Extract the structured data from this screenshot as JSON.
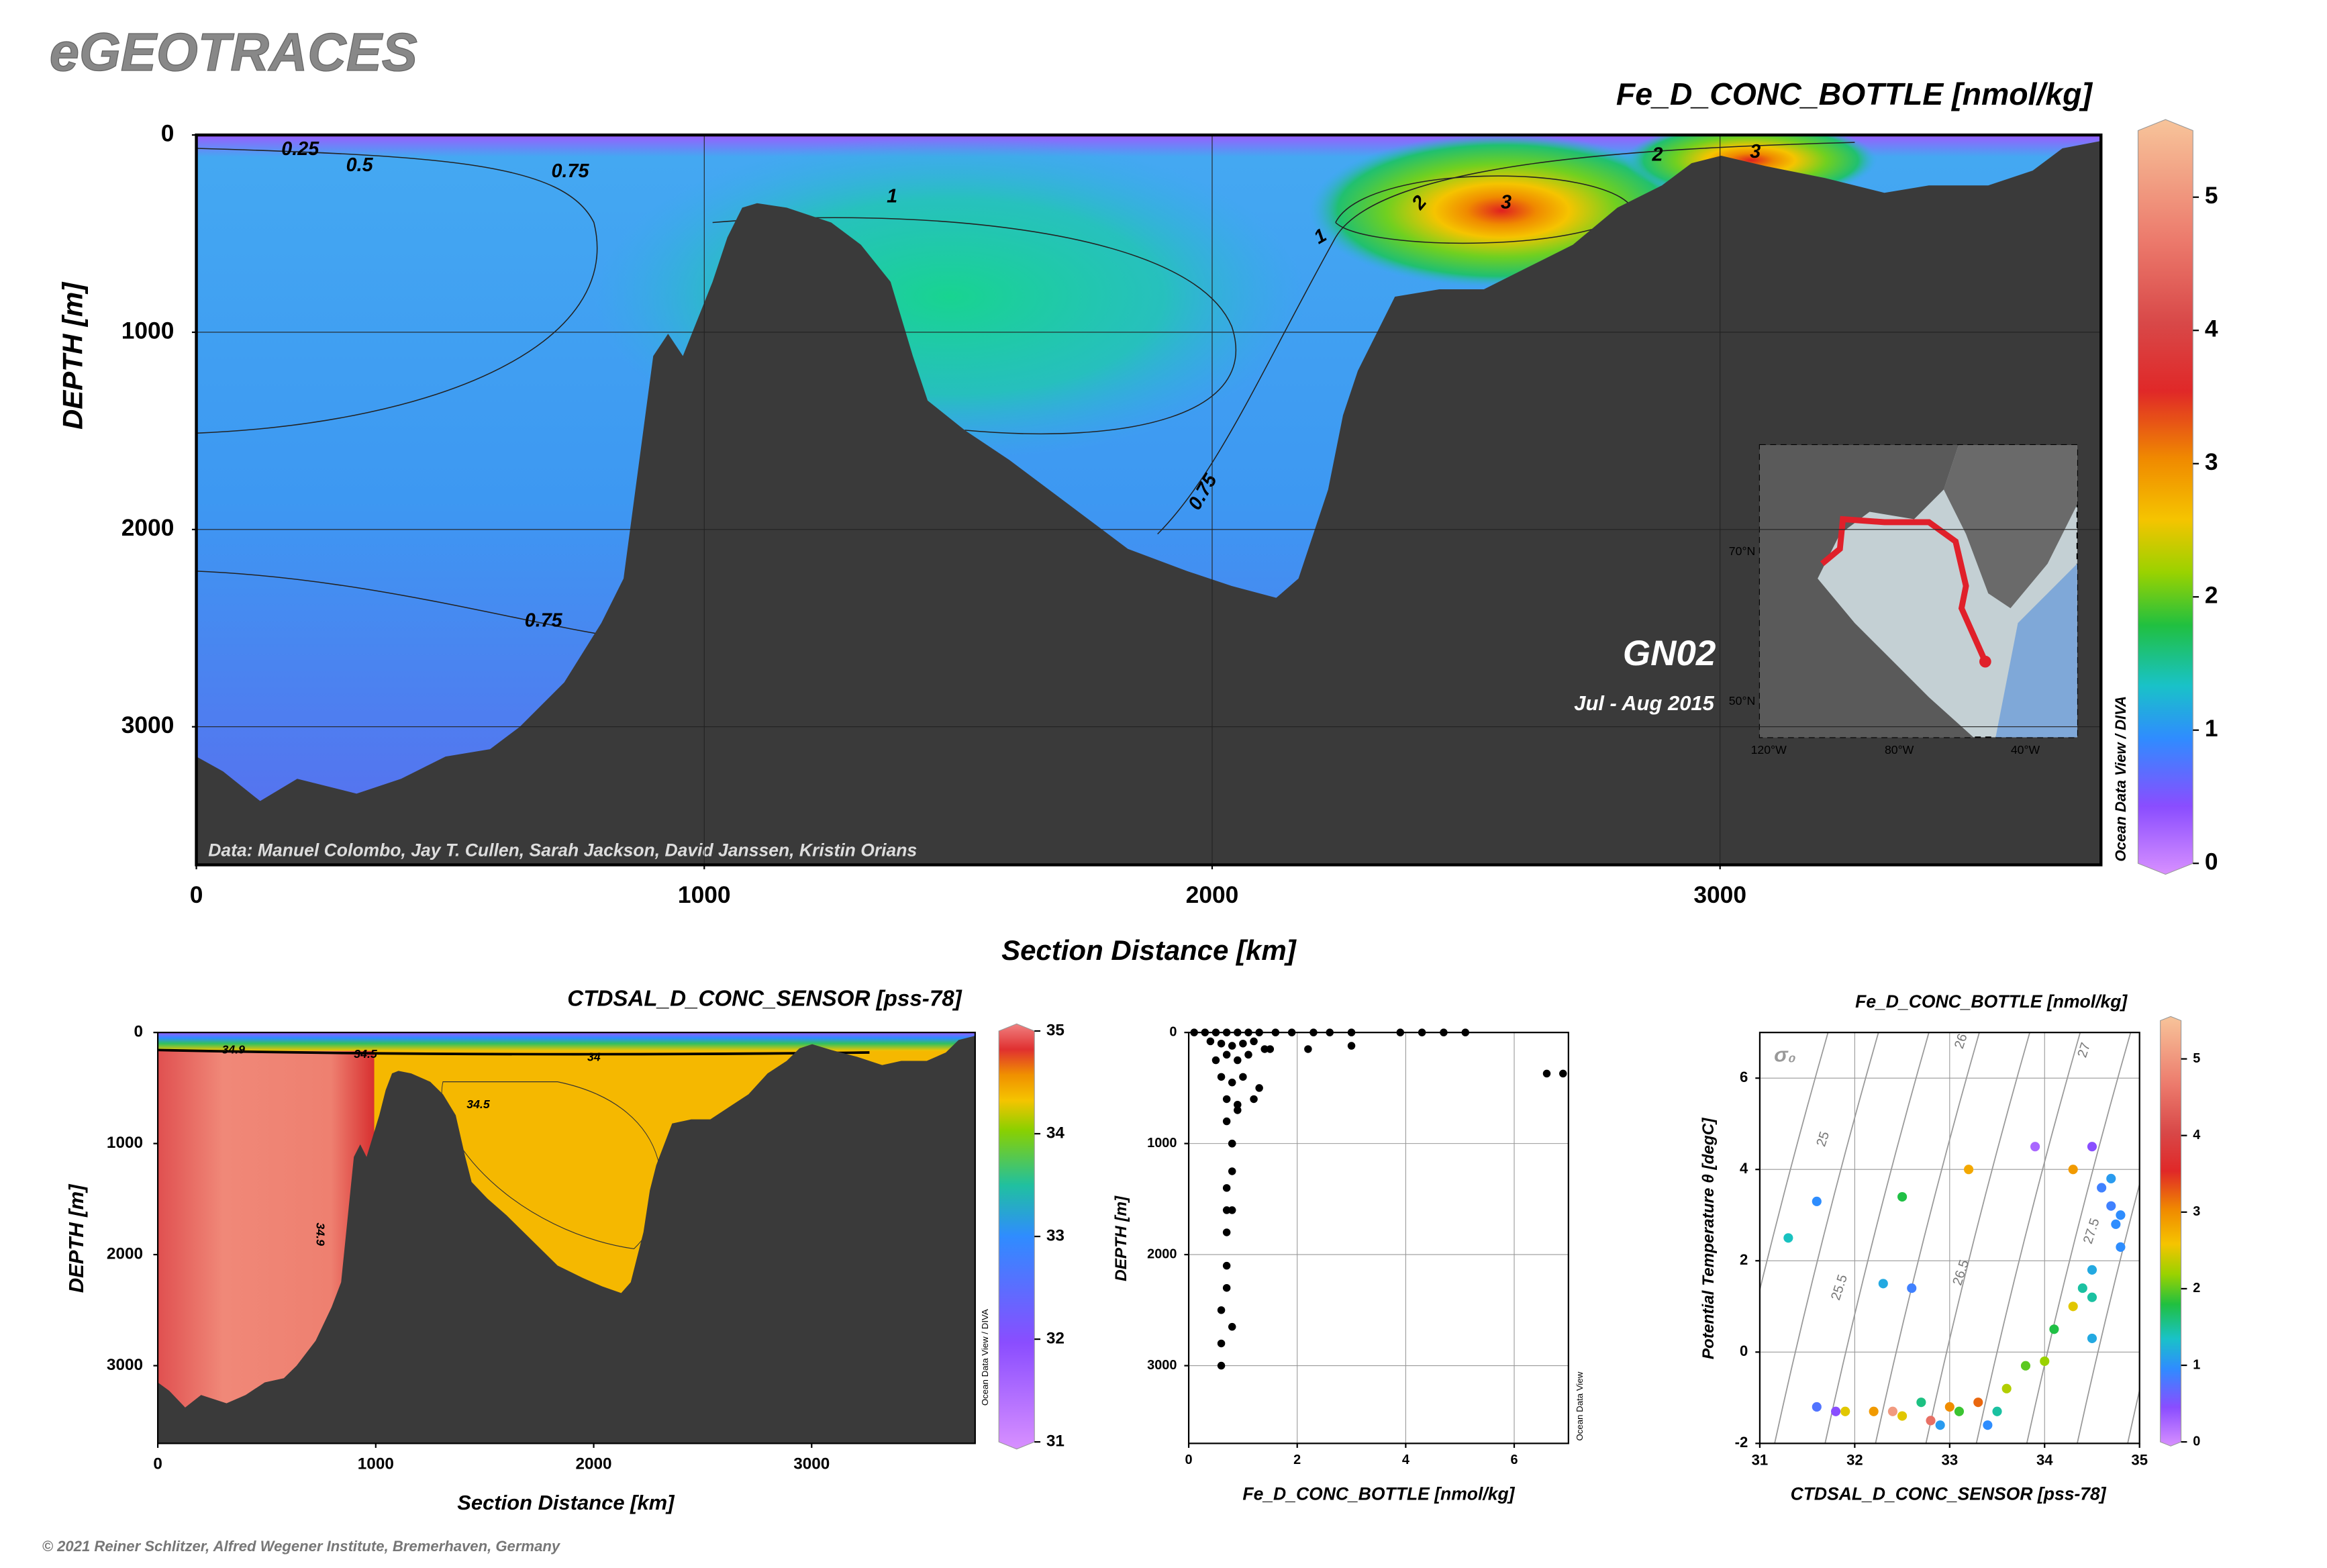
{
  "header": {
    "title": "eGEOTRACES",
    "footer": "© 2021 Reiner Schlitzer, Alfred Wegener Institute, Bremerhaven, Germany"
  },
  "chart_data": [
    {
      "type": "section",
      "title": "Fe_D_CONC_BOTTLE [nmol/kg]",
      "x_label": "Section Distance [km]",
      "y_label": "DEPTH [m]",
      "xlim": [
        0,
        3750
      ],
      "xticks": [
        0,
        1000,
        2000,
        3000
      ],
      "ylim": [
        3700,
        0
      ],
      "yticks": [
        0,
        1000,
        2000,
        3000
      ],
      "grid": true,
      "colorbar": {
        "lim": [
          0,
          5.5
        ],
        "ticks": [
          0,
          1,
          2,
          3,
          4,
          5
        ]
      },
      "contour_labels": [
        "0.25",
        "0.5",
        "0.75",
        "1",
        "0.75",
        "0.75",
        "2",
        "3",
        "1",
        "2",
        "3"
      ],
      "annotations": [
        "GN02",
        "Jul - Aug 2015",
        "Data: Manuel Colombo, Jay T. Cullen, Sarah Jackson, David Janssen, Kristin Orians",
        "Ocean Data View / DIVA"
      ],
      "inset_map_labels": [
        "70°N",
        "50°N",
        "120°W",
        "80°W",
        "40°W"
      ]
    },
    {
      "type": "section",
      "title": "CTDSAL_D_CONC_SENSOR [pss-78]",
      "x_label": "Section Distance [km]",
      "y_label": "DEPTH [m]",
      "xlim": [
        0,
        3750
      ],
      "xticks": [
        0,
        1000,
        2000,
        3000
      ],
      "ylim": [
        3700,
        0
      ],
      "yticks": [
        0,
        1000,
        2000,
        3000
      ],
      "grid": false,
      "colorbar": {
        "lim": [
          31,
          35
        ],
        "ticks": [
          31,
          32,
          33,
          34,
          35
        ]
      },
      "contour_labels": [
        "34.9",
        "34.5",
        "34",
        "34.5",
        "34.9"
      ],
      "annotations": [
        "Ocean Data View / DIVA"
      ]
    },
    {
      "type": "scatter",
      "x_label": "Fe_D_CONC_BOTTLE [nmol/kg]",
      "y_label": "DEPTH [m]",
      "xlim": [
        0,
        7
      ],
      "xticks": [
        0,
        2,
        4,
        6
      ],
      "ylim": [
        3700,
        0
      ],
      "yticks": [
        0,
        1000,
        2000,
        3000
      ],
      "grid": true,
      "color": "#000000",
      "x": [
        0.1,
        0.3,
        0.5,
        0.7,
        0.9,
        1.1,
        1.3,
        1.6,
        1.9,
        2.3,
        2.6,
        3.0,
        3.9,
        4.3,
        4.7,
        5.1,
        6.6,
        6.9,
        0.4,
        0.6,
        0.8,
        1.0,
        1.2,
        0.5,
        0.7,
        0.9,
        1.1,
        1.4,
        0.6,
        0.8,
        1.0,
        1.3,
        0.7,
        0.9,
        1.2,
        0.7,
        0.9,
        0.8,
        0.8,
        0.8,
        0.7,
        0.7,
        0.8,
        0.7,
        0.7,
        0.7,
        0.6,
        0.8,
        2.2,
        3.0,
        1.5,
        0.6,
        0.6
      ],
      "y": [
        0,
        0,
        0,
        0,
        0,
        0,
        0,
        0,
        0,
        0,
        0,
        0,
        0,
        0,
        0,
        0,
        370,
        370,
        80,
        100,
        120,
        100,
        80,
        250,
        200,
        250,
        200,
        150,
        400,
        450,
        400,
        500,
        600,
        650,
        600,
        800,
        700,
        1000,
        1000,
        1250,
        1400,
        1600,
        1600,
        1800,
        2100,
        2300,
        2500,
        2650,
        150,
        120,
        150,
        2800,
        3000
      ],
      "annotations": [
        "Ocean Data View"
      ]
    },
    {
      "type": "scatter",
      "title": "Fe_D_CONC_BOTTLE [nmol/kg]",
      "x_label": "CTDSAL_D_CONC_SENSOR [pss-78]",
      "y_label": "Potential Temperature θ [degC]",
      "xlim": [
        31,
        35
      ],
      "xticks": [
        31,
        32,
        33,
        34,
        35
      ],
      "ylim": [
        -2,
        7
      ],
      "yticks": [
        -2,
        0,
        2,
        4,
        6
      ],
      "grid": true,
      "colorbar": {
        "lim": [
          0,
          5.5
        ],
        "ticks": [
          0,
          1,
          2,
          3,
          4,
          5
        ]
      },
      "x": [
        31.3,
        31.6,
        32.3,
        32.5,
        32.6,
        33.2,
        33.9,
        34.3,
        34.5,
        34.6,
        34.7,
        34.75,
        34.8,
        34.5,
        34.5,
        34.3,
        34.1,
        34.5,
        33.8,
        33.6,
        33.5,
        33.0,
        32.8,
        32.5,
        32.2,
        31.9,
        31.6,
        31.8,
        32.9,
        33.3,
        33.1,
        32.7,
        33.4,
        32.4,
        34.0,
        34.4,
        34.7,
        34.8
      ],
      "y": [
        2.5,
        3.3,
        1.5,
        3.4,
        1.4,
        4.0,
        4.5,
        4.0,
        4.5,
        3.6,
        3.2,
        2.8,
        2.3,
        1.8,
        1.2,
        1.0,
        0.5,
        0.3,
        -0.3,
        -0.8,
        -1.3,
        -1.2,
        -1.5,
        -1.4,
        -1.3,
        -1.3,
        -1.2,
        -1.3,
        -1.6,
        -1.1,
        -1.3,
        -1.1,
        -1.6,
        -1.3,
        -0.2,
        1.4,
        3.8,
        3.0
      ],
      "values": [
        1.4,
        1.0,
        1.2,
        1.8,
        0.9,
        2.8,
        0.3,
        2.9,
        0.5,
        0.9,
        0.9,
        1.0,
        1.0,
        1.2,
        1.5,
        2.5,
        1.8,
        1.2,
        2.0,
        2.3,
        1.5,
        3.0,
        4.5,
        2.5,
        2.9,
        2.5,
        0.8,
        0.5,
        1.1,
        3.2,
        1.9,
        1.6,
        1.0,
        5.0,
        2.2,
        1.5,
        1.1,
        1.0
      ],
      "isopycnal_labels": [
        "25",
        "26",
        "27",
        "25.5",
        "26.5",
        "27.5"
      ],
      "annotations": [
        "σ₀"
      ]
    }
  ]
}
